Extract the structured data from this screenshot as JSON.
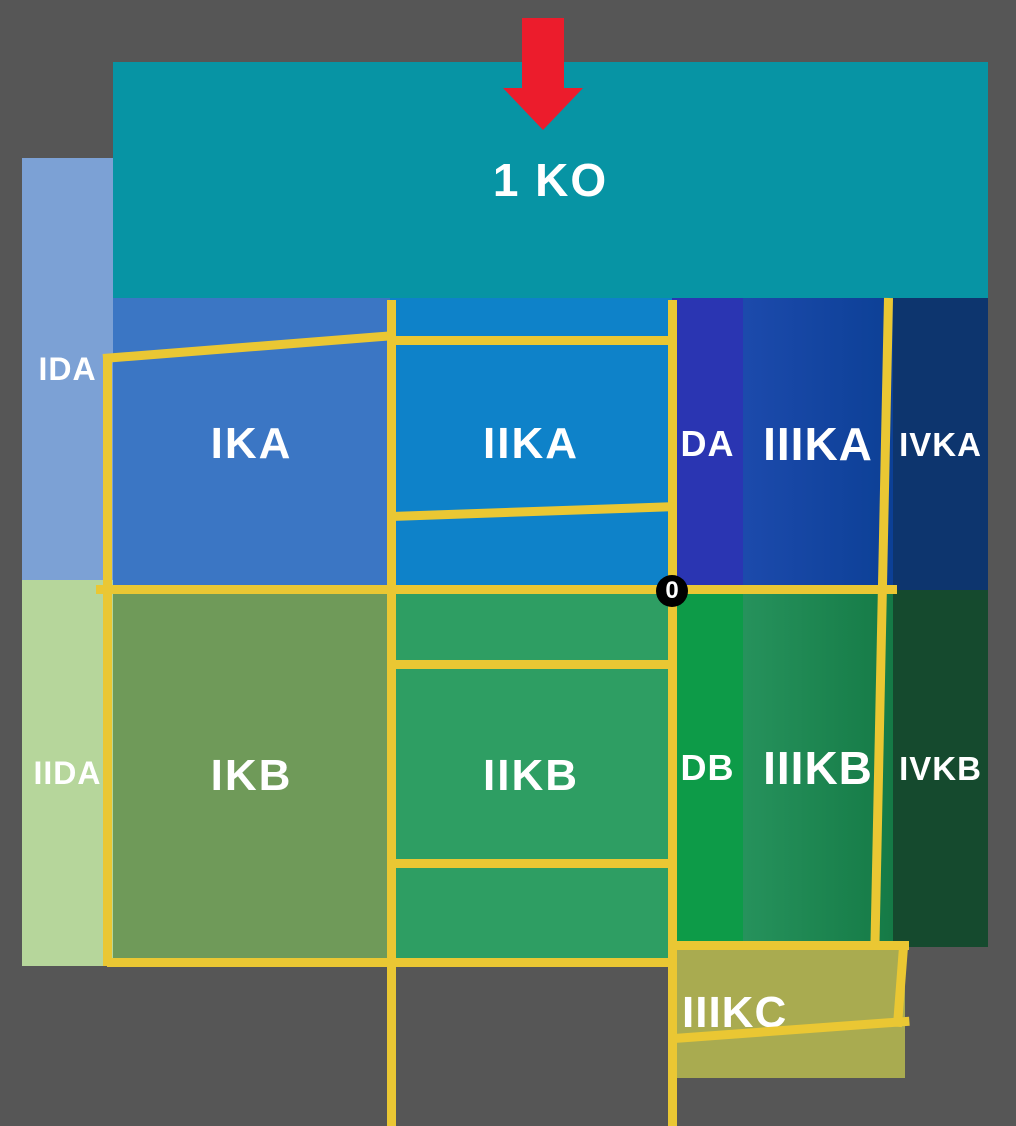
{
  "diagram": {
    "background_color": "#565656",
    "boundary_color": "#EAC733",
    "arrow_color": "#EC1C2C",
    "banner": {
      "label": "1 KO",
      "color": "#0794A4"
    },
    "marker": {
      "label": "0",
      "color": "#000000",
      "text_color": "#FFFFFF"
    },
    "zones": {
      "ida": {
        "label": "IDA",
        "color": "#7CA1D5"
      },
      "iida": {
        "label": "IIDA",
        "color": "#B6D69B"
      },
      "ika": {
        "label": "IKA",
        "color": "#3B76C4"
      },
      "iika": {
        "label": "IIKA",
        "color": "#0E82C9"
      },
      "da": {
        "label": "DA",
        "color": "#2A35B2"
      },
      "iiika": {
        "label": "IIIKA",
        "color": "#1C4AAC",
        "color2": "#0C4096"
      },
      "ivka": {
        "label": "IVKA",
        "color": "#0D356E"
      },
      "ikb": {
        "label": "IKB",
        "color": "#6F9A59"
      },
      "iikb": {
        "label": "IIKB",
        "color": "#2E9E63"
      },
      "db": {
        "label": "DB",
        "color": "#0D9B48"
      },
      "iiikb": {
        "label": "IIIKB",
        "color": "#26925C",
        "color2": "#157A46"
      },
      "ivkb": {
        "label": "IVKB",
        "color": "#154A2E"
      },
      "iiikc": {
        "label": "IIIKC",
        "color": "#A9AB50"
      }
    }
  }
}
